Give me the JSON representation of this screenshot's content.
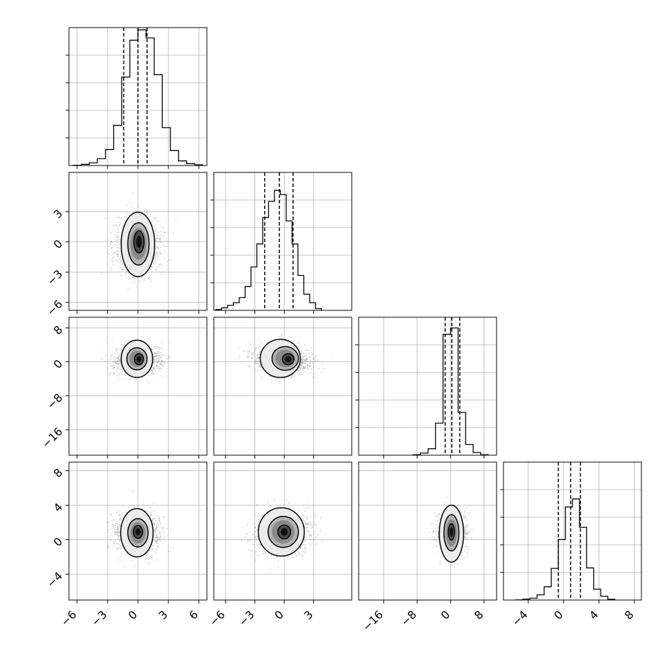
{
  "chart_data": {
    "type": "corner",
    "grid": true,
    "colors": {
      "line": "#000000",
      "grid": "#b0b0b0",
      "scatter": "#9a9a9a",
      "background": "#ffffff"
    },
    "params": [
      {
        "range": [
          -6.8,
          6.8
        ],
        "ticks": [
          -6,
          -3,
          0,
          3,
          6
        ],
        "tick_labels": [
          "−6",
          "−3",
          "0",
          "3",
          "6"
        ],
        "hist_bins": [
          -6.4,
          -5.6,
          -4.8,
          -4.0,
          -3.2,
          -2.4,
          -1.6,
          -0.8,
          0.0,
          0.8,
          1.6,
          2.4,
          3.2,
          4.0,
          4.8,
          5.6,
          6.4
        ],
        "hist_counts": [
          1,
          5,
          12,
          30,
          70,
          175,
          385,
          545,
          590,
          555,
          395,
          165,
          65,
          20,
          8,
          3
        ],
        "hist_max": 600,
        "quantiles": [
          -1.4,
          0.0,
          0.9
        ],
        "mean": 0.0,
        "sd": 1.1
      },
      {
        "range": [
          -7.2,
          6.9
        ],
        "ticks": [
          -6,
          -3,
          0,
          3
        ],
        "tick_labels": [
          "−6",
          "−3",
          "0",
          "3"
        ],
        "hist_bins": [
          -7.0,
          -6.4,
          -5.8,
          -5.2,
          -4.6,
          -4.0,
          -3.4,
          -2.8,
          -2.2,
          -1.6,
          -1.0,
          -0.4,
          0.2,
          0.8,
          1.4,
          2.0,
          2.6,
          3.2,
          3.8
        ],
        "hist_counts": [
          5,
          15,
          30,
          45,
          75,
          140,
          255,
          390,
          545,
          640,
          705,
          680,
          525,
          390,
          205,
          95,
          45,
          10
        ],
        "hist_max": 810,
        "quantiles": [
          -2.0,
          -0.5,
          0.9
        ],
        "mean": -0.3,
        "sd": 1.4
      },
      {
        "range": [
          -22,
          11
        ],
        "ticks": [
          -16,
          -8,
          0,
          8
        ],
        "tick_labels": [
          "−16",
          "−8",
          "0",
          "8"
        ],
        "hist_bins": [
          -9.0,
          -7.2,
          -5.4,
          -3.6,
          -1.8,
          0.0,
          1.8,
          3.6,
          5.4,
          7.2,
          9.0
        ],
        "hist_counts": [
          5,
          20,
          60,
          300,
          1130,
          1190,
          400,
          100,
          25,
          5
        ],
        "hist_max": 1290,
        "quantiles": [
          -1.3,
          0.3,
          2.2
        ],
        "mean": 0.4,
        "sd": 1.6
      },
      {
        "range": [
          -6.8,
          8.8
        ],
        "ticks": [
          -4,
          0,
          4,
          8
        ],
        "tick_labels": [
          "−4",
          "0",
          "4",
          "8"
        ],
        "hist_bins": [
          -5.4,
          -4.6,
          -3.8,
          -3.0,
          -2.2,
          -1.4,
          -0.6,
          0.2,
          1.0,
          1.8,
          2.6,
          3.4,
          4.2,
          5.0,
          5.8
        ],
        "hist_counts": [
          2,
          10,
          20,
          55,
          140,
          335,
          640,
          985,
          1070,
          770,
          340,
          115,
          40,
          8
        ],
        "hist_max": 1460,
        "quantiles": [
          -0.6,
          0.8,
          1.9
        ],
        "mean": 0.8,
        "sd": 1.2
      }
    ],
    "row_ranges": [
      null,
      {
        "range": [
          -6.8,
          6.9
        ],
        "ticks": [
          -6,
          -3,
          0,
          3
        ],
        "tick_labels": [
          "−6",
          "−3",
          "0",
          "3"
        ]
      },
      {
        "range": [
          -22,
          10.5
        ],
        "ticks": [
          -16,
          -8,
          0,
          8
        ],
        "tick_labels": [
          "−16",
          "−8",
          "0",
          "8"
        ]
      },
      {
        "range": [
          -7.0,
          9.0
        ],
        "ticks": [
          -4,
          0,
          4,
          8
        ],
        "tick_labels": [
          "−4",
          "0",
          "4",
          "8"
        ]
      }
    ],
    "pairs": [
      {
        "row": 1,
        "col": 0,
        "corr": 0.05,
        "contours": [
          {
            "cx": 0.0,
            "cy": -0.25,
            "rx": 1.65,
            "ry": 3.2
          },
          {
            "cx": 0.05,
            "cy": -0.2,
            "rx": 1.05,
            "ry": 2.1
          },
          {
            "cx": 0.1,
            "cy": 0.0,
            "rx": 0.5,
            "ry": 1.1
          }
        ]
      },
      {
        "row": 2,
        "col": 0,
        "corr": 0.0,
        "contours": [
          {
            "cx": -0.1,
            "cy": 0.7,
            "rx": 1.55,
            "ry": 4.4
          },
          {
            "cx": -0.1,
            "cy": 0.7,
            "rx": 1.0,
            "ry": 2.6
          },
          {
            "cx": 0.1,
            "cy": 0.6,
            "rx": 0.45,
            "ry": 1.3
          }
        ]
      },
      {
        "row": 2,
        "col": 1,
        "corr": -0.2,
        "contours": [
          {
            "cx": -0.4,
            "cy": 0.8,
            "rx": 2.05,
            "ry": 4.5
          },
          {
            "cx": 0.1,
            "cy": 0.8,
            "rx": 1.35,
            "ry": 2.8
          },
          {
            "cx": 0.4,
            "cy": 0.6,
            "rx": 0.6,
            "ry": 1.3
          }
        ]
      },
      {
        "row": 3,
        "col": 0,
        "corr": 0.0,
        "contours": [
          {
            "cx": -0.1,
            "cy": 0.8,
            "rx": 1.6,
            "ry": 2.8
          },
          {
            "cx": 0.0,
            "cy": 0.8,
            "rx": 1.0,
            "ry": 1.65
          },
          {
            "cx": 0.0,
            "cy": 0.9,
            "rx": 0.45,
            "ry": 0.75
          }
        ]
      },
      {
        "row": 3,
        "col": 1,
        "corr": 0.05,
        "contours": [
          {
            "cx": -0.3,
            "cy": 0.9,
            "rx": 2.35,
            "ry": 2.8
          },
          {
            "cx": -0.1,
            "cy": 0.9,
            "rx": 1.55,
            "ry": 1.8
          },
          {
            "cx": 0.0,
            "cy": 0.9,
            "rx": 0.65,
            "ry": 0.8
          }
        ]
      },
      {
        "row": 3,
        "col": 2,
        "corr": 0.0,
        "contours": [
          {
            "cx": 0.2,
            "cy": 0.7,
            "rx": 2.9,
            "ry": 3.3
          },
          {
            "cx": 0.2,
            "cy": 0.8,
            "rx": 1.8,
            "ry": 2.1
          },
          {
            "cx": 0.2,
            "cy": 0.9,
            "rx": 0.75,
            "ry": 0.95
          }
        ]
      }
    ]
  }
}
